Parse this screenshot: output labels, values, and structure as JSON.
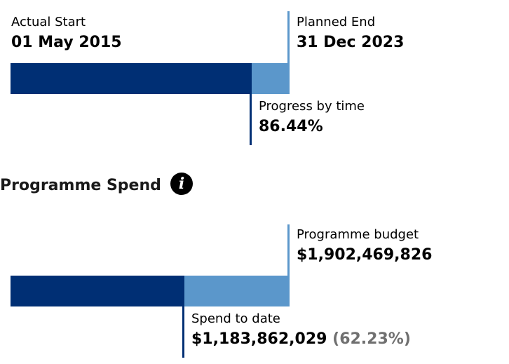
{
  "timeline": {
    "actual_start_label": "Actual Start",
    "actual_start_value": "01 May 2015",
    "planned_end_label": "Planned End",
    "planned_end_value": "31 Dec 2023",
    "progress_label": "Progress by time",
    "progress_value": "86.44%",
    "progress_fraction": 0.8644
  },
  "spend": {
    "title": "Programme Spend",
    "info_icon": "info-icon",
    "budget_label": "Programme budget",
    "budget_value": "$1,902,469,826",
    "spend_label": "Spend to date",
    "spend_value": "$1,183,862,029",
    "spend_percent": "(62.23%)",
    "spend_fraction": 0.6223
  },
  "colors": {
    "bar_dark": "#002f74",
    "bar_light": "#5b97cb",
    "line_light": "#5b97cb",
    "line_dark": "#002f74",
    "percent_grey": "#707070"
  }
}
